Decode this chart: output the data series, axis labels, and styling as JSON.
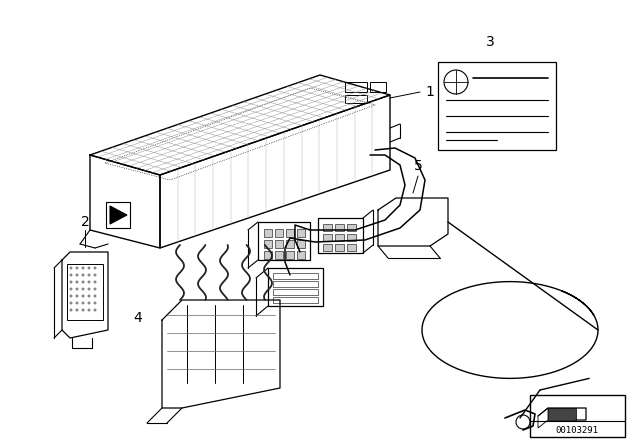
{
  "background_color": "#ffffff",
  "line_color": "#000000",
  "diagram_number": "00103291",
  "fig_width": 6.4,
  "fig_height": 4.48,
  "dpi": 100
}
